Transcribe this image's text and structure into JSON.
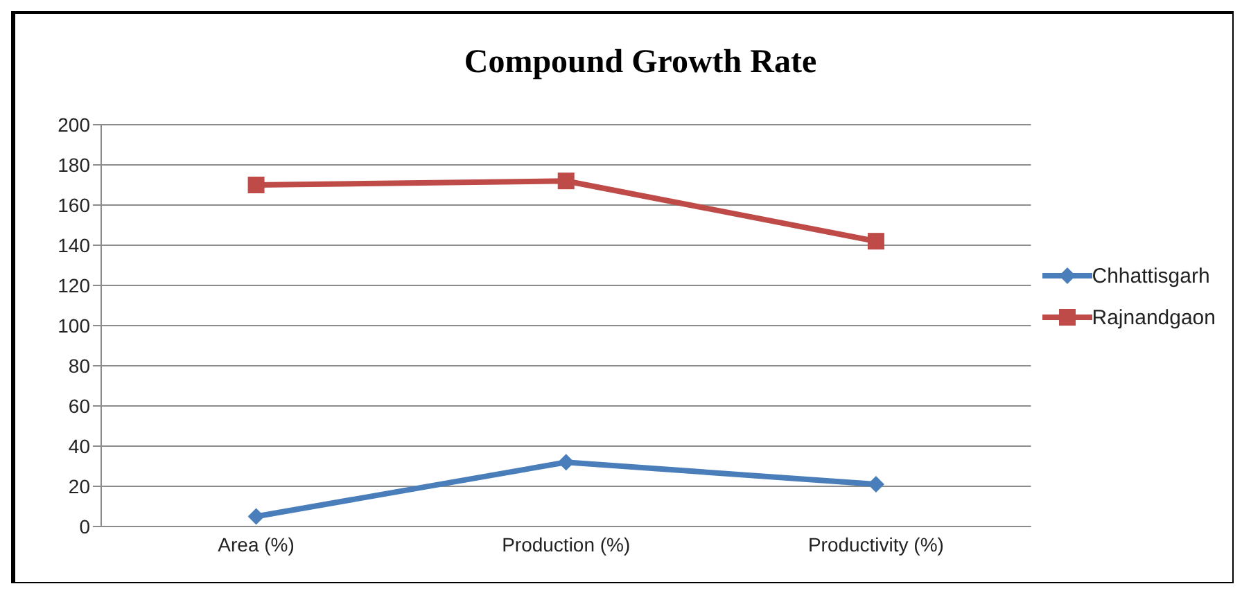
{
  "chart_data": {
    "type": "line",
    "title": "Compound Growth Rate",
    "categories": [
      "Area (%)",
      "Production (%)",
      "Productivity (%)"
    ],
    "series": [
      {
        "name": "Chhattisgarh",
        "color": "#4a7ebb",
        "values": [
          5,
          32,
          21
        ],
        "marker": "diamond"
      },
      {
        "name": "Rajnandgaon",
        "color": "#be4b48",
        "values": [
          170,
          172,
          142
        ],
        "marker": "square"
      }
    ],
    "ylim": [
      0,
      200
    ],
    "yticks": [
      0,
      20,
      40,
      60,
      80,
      100,
      120,
      140,
      160,
      180,
      200
    ],
    "grid": "y",
    "legend": "right"
  }
}
